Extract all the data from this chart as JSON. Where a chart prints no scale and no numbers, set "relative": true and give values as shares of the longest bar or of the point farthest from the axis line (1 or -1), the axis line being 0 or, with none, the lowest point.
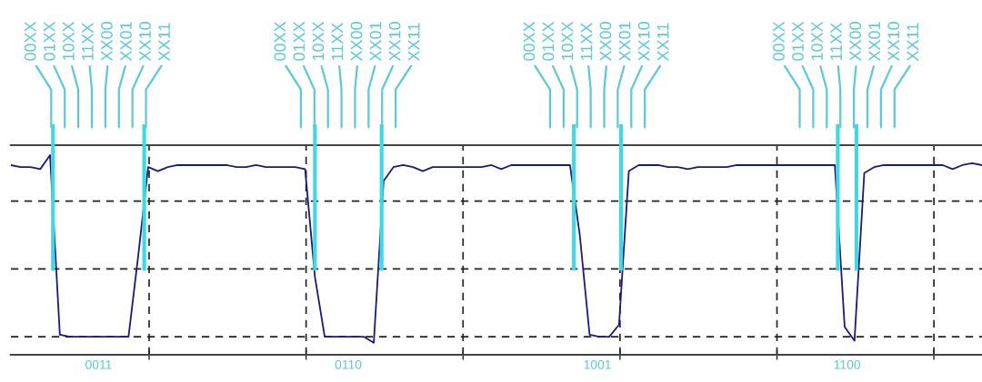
{
  "chart_data": {
    "type": "line",
    "relative": true,
    "categories": [
      null,
      null,
      null,
      null,
      null,
      null,
      null,
      null,
      null,
      null,
      null,
      null,
      null,
      null,
      null,
      null,
      null,
      null,
      null,
      null,
      null,
      null,
      null,
      null,
      null,
      null,
      null,
      null,
      null,
      null,
      null,
      null,
      null,
      null,
      null,
      null,
      null,
      null,
      null,
      null,
      null,
      null,
      null,
      null,
      null,
      null,
      null,
      null,
      null,
      null,
      null,
      null,
      null,
      null,
      null,
      null,
      null,
      null,
      null,
      null,
      null,
      null,
      null,
      null,
      null,
      null,
      null,
      null,
      null,
      null,
      null,
      null,
      null,
      null,
      null,
      null,
      null,
      null,
      null,
      null,
      null,
      null,
      null,
      null,
      null,
      null,
      null,
      null,
      null,
      null,
      null,
      null,
      null,
      null,
      null,
      null,
      null,
      null,
      null,
      null
    ],
    "series": [
      {
        "color": "#1a1a7a",
        "values": [
          0.95,
          0.94,
          0.94,
          0.93,
          1.0,
          0.1,
          0.09,
          0.09,
          0.09,
          0.09,
          0.09,
          0.09,
          0.09,
          0.5,
          0.94,
          0.92,
          0.94,
          0.95,
          0.95,
          0.95,
          0.95,
          0.95,
          0.95,
          0.94,
          0.94,
          0.95,
          0.94,
          0.94,
          0.94,
          0.94,
          0.93,
          0.39,
          0.09,
          0.09,
          0.09,
          0.09,
          0.09,
          0.06,
          0.87,
          0.94,
          0.95,
          0.94,
          0.92,
          0.94,
          0.94,
          0.94,
          0.94,
          0.94,
          0.94,
          0.95,
          0.93,
          0.95,
          0.95,
          0.95,
          0.95,
          0.95,
          0.95,
          0.95,
          0.6,
          0.1,
          0.09,
          0.09,
          0.15,
          0.92,
          0.95,
          0.95,
          0.95,
          0.94,
          0.94,
          0.93,
          0.94,
          0.94,
          0.94,
          0.94,
          0.95,
          0.95,
          0.95,
          0.95,
          0.95,
          0.95,
          0.95,
          0.95,
          0.95,
          0.95,
          0.95,
          0.14,
          0.07,
          0.91,
          0.94,
          0.95,
          0.95,
          0.95,
          0.95,
          0.95,
          0.95,
          0.95,
          0.93,
          0.95,
          0.96,
          0.95
        ]
      }
    ],
    "ref_lines": [
      {
        "axis": "y",
        "value": 0.09,
        "label": null,
        "color": "#222222",
        "line_style": "dashed"
      },
      {
        "axis": "y",
        "value": 0.43,
        "label": null,
        "color": "#222222",
        "line_style": "dashed"
      },
      {
        "axis": "y",
        "value": 0.77,
        "label": null,
        "color": "#222222",
        "line_style": "dashed"
      }
    ],
    "grid": true,
    "annotations": [
      "00XX",
      "01XX",
      "10XX",
      "11XX",
      "XX00",
      "XX01",
      "XX10",
      "XX11",
      "00XX",
      "01XX",
      "10XX",
      "11XX",
      "XX00",
      "XX01",
      "XX10",
      "XX11",
      "00XX",
      "01XX",
      "10XX",
      "11XX",
      "XX00",
      "XX01",
      "XX10",
      "XX11",
      "00XX",
      "01XX",
      "10XX",
      "11XX",
      "XX00",
      "XX01",
      "XX10",
      "XX11",
      "0011",
      "0110",
      "1001",
      "1100"
    ]
  }
}
